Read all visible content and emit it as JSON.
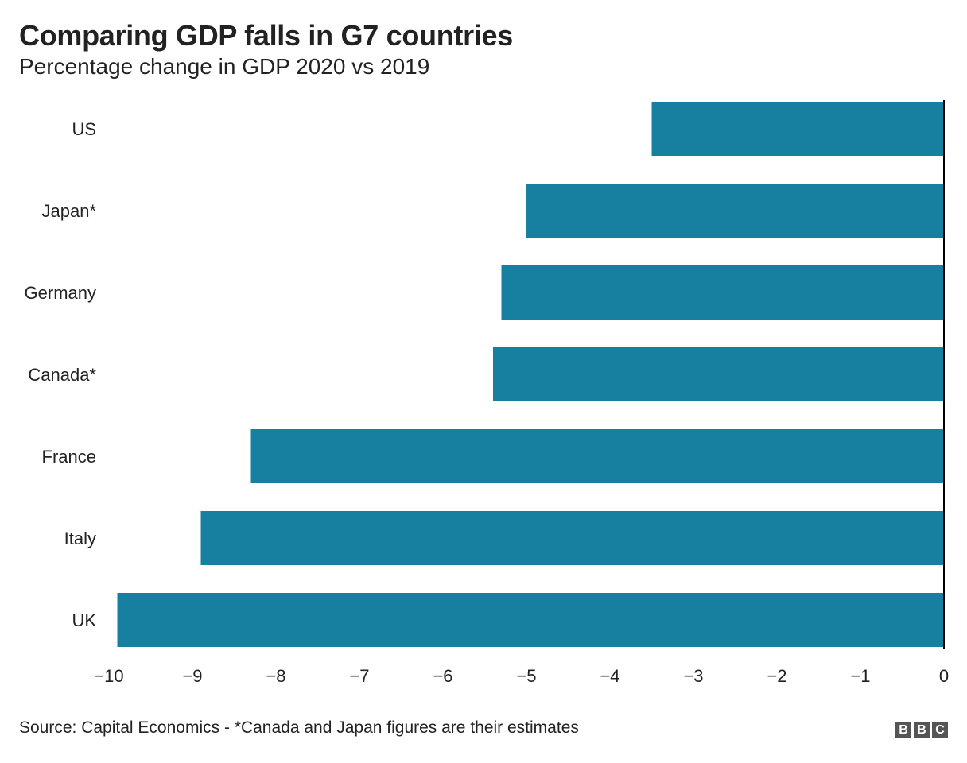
{
  "title": "Comparing GDP falls in G7 countries",
  "subtitle": "Percentage change in GDP 2020 vs 2019",
  "source": "Source: Capital Economics - *Canada and Japan figures are their estimates",
  "logo": [
    "B",
    "B",
    "C"
  ],
  "bar_color": "#1780a1",
  "chart_data": {
    "type": "bar",
    "orientation": "horizontal",
    "categories": [
      "US",
      "Japan*",
      "Germany",
      "Canada*",
      "France",
      "Italy",
      "UK"
    ],
    "values": [
      -3.5,
      -5.0,
      -5.3,
      -5.4,
      -8.3,
      -8.9,
      -9.9
    ],
    "title": "Comparing GDP falls in G7 countries",
    "subtitle": "Percentage change in GDP 2020 vs 2019",
    "xlim": [
      -10,
      0
    ],
    "xticks": [
      -10,
      -9,
      -8,
      -7,
      -6,
      -5,
      -4,
      -3,
      -2,
      -1,
      0
    ],
    "xtick_labels": [
      "−10",
      "−9",
      "−8",
      "−7",
      "−6",
      "−5",
      "−4",
      "−3",
      "−2",
      "−1",
      "0"
    ],
    "grid": false,
    "legend": "none"
  }
}
